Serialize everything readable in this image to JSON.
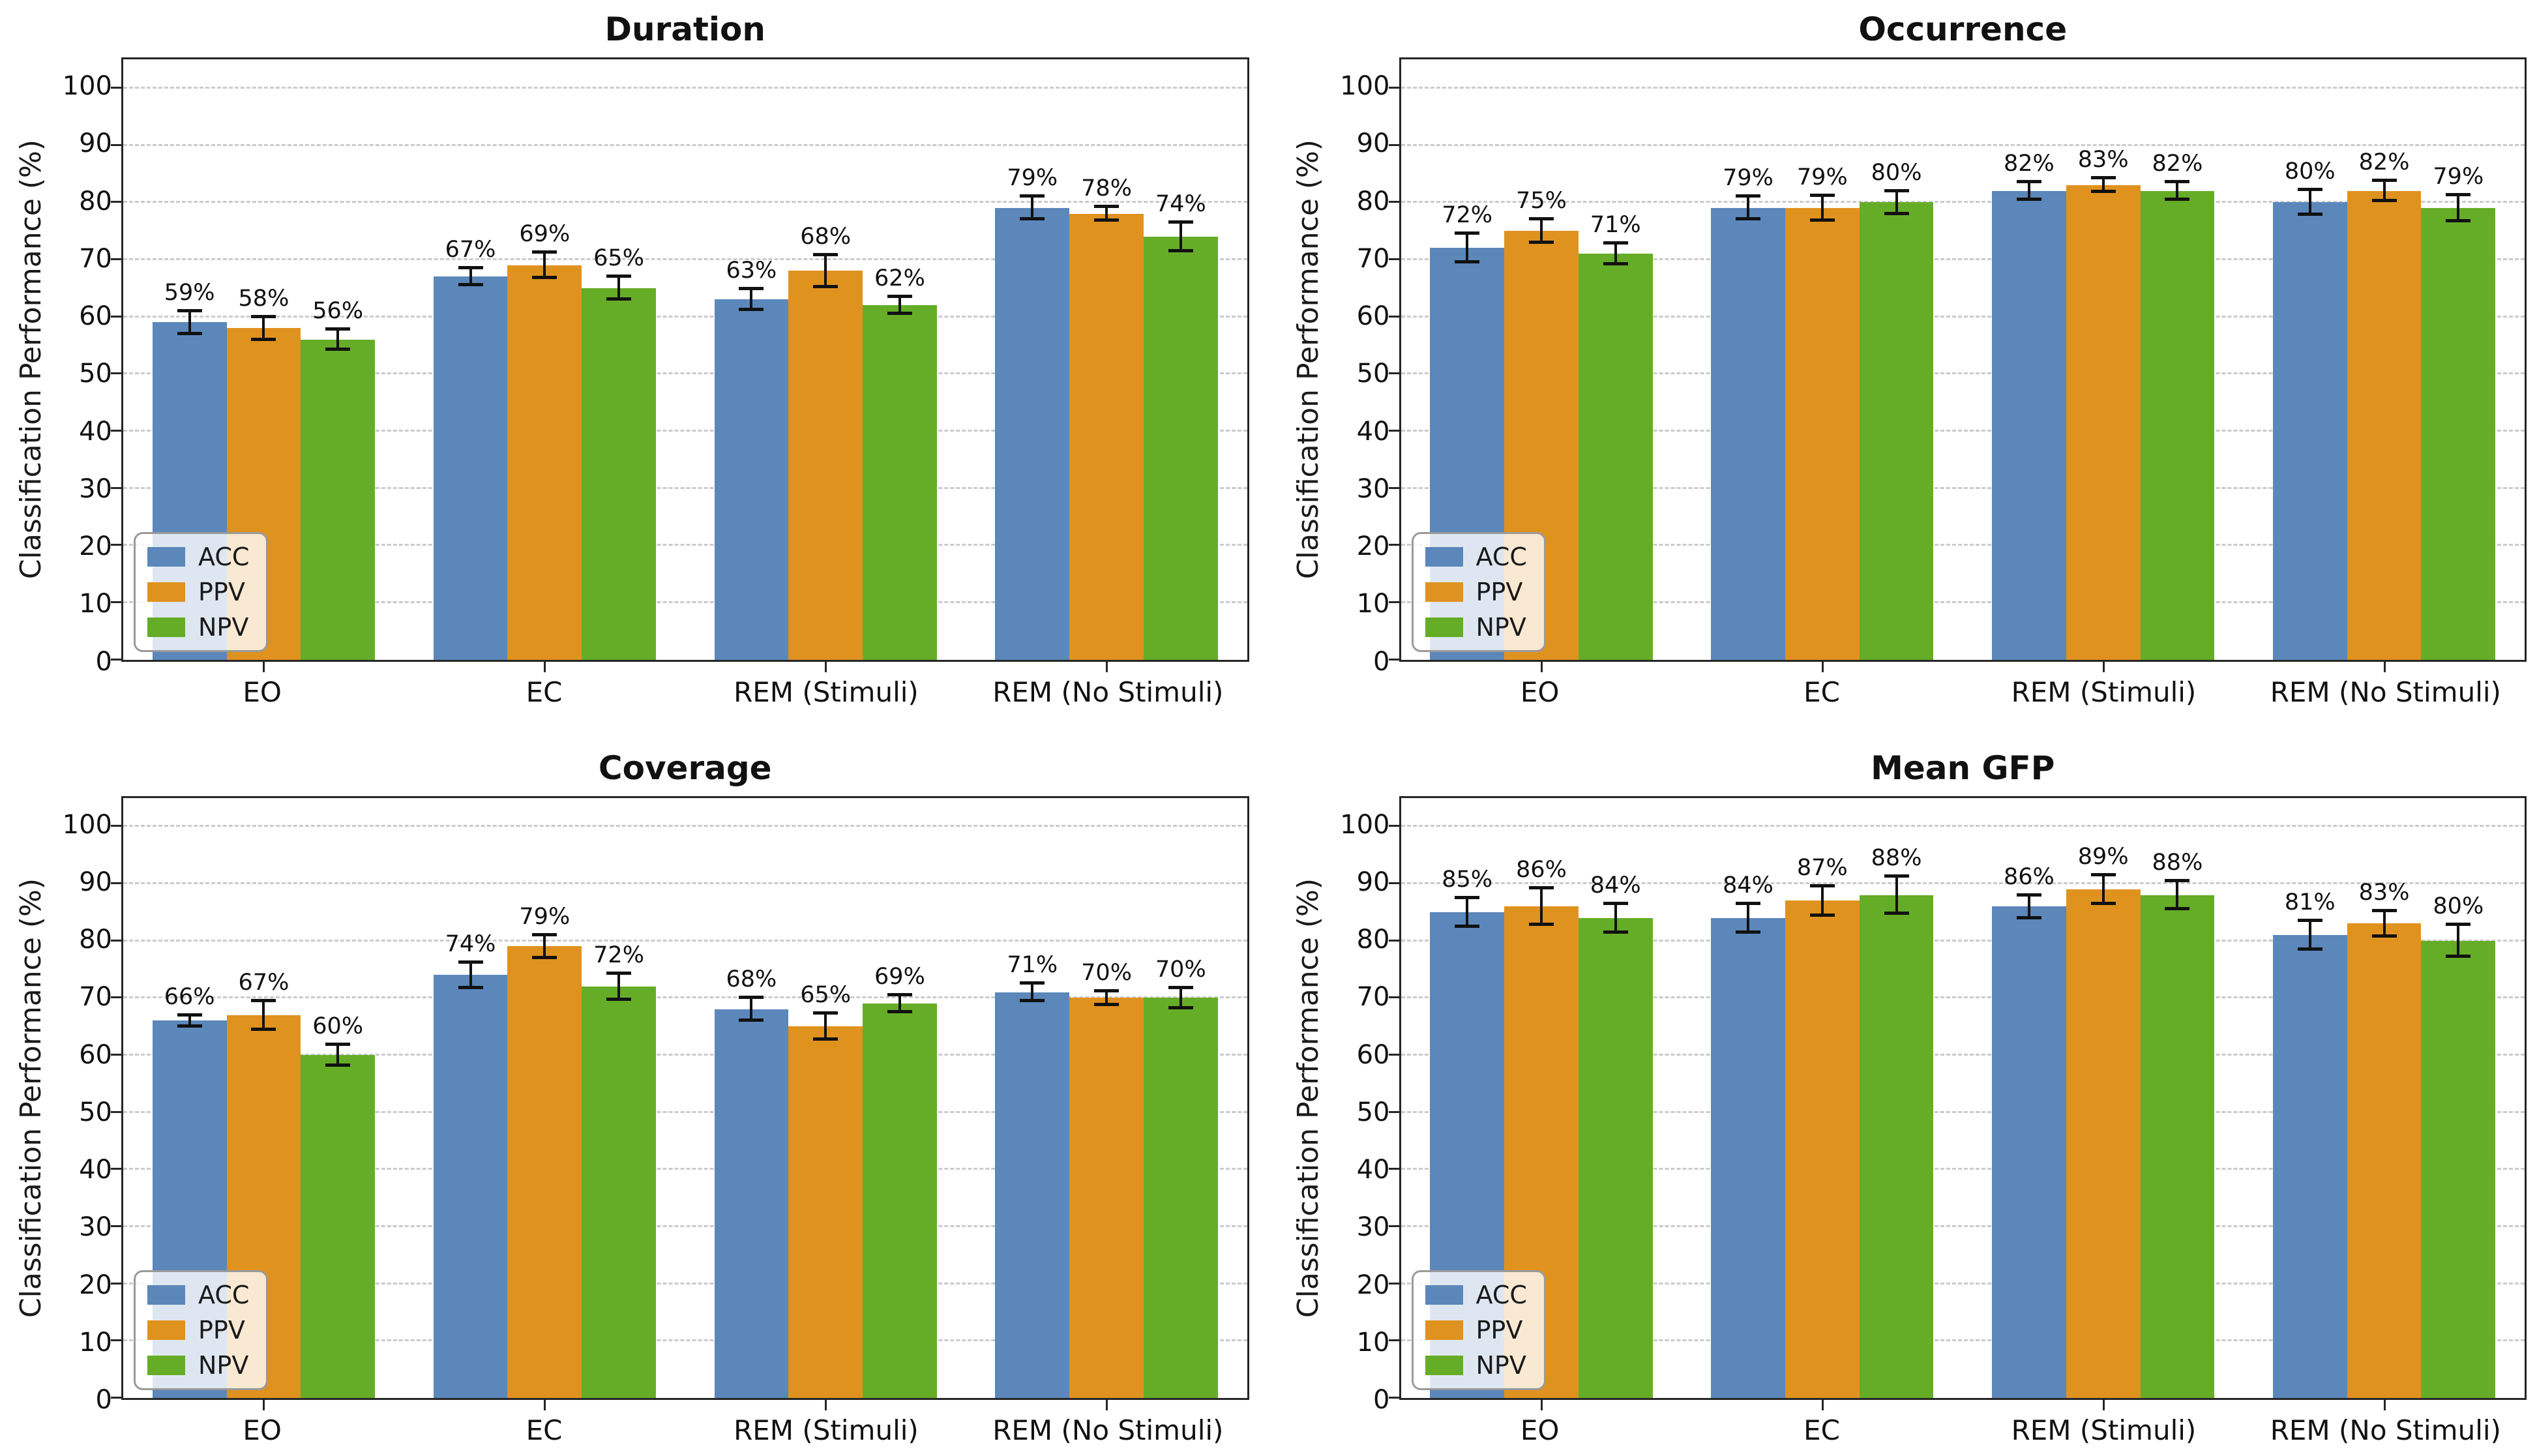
{
  "figure": {
    "ylabel": "Classification Performance (%)",
    "categories": [
      "EO",
      "EC",
      "REM (Stimuli)",
      "REM (No Stimuli)"
    ],
    "series_names": [
      "ACC",
      "PPV",
      "NPV"
    ],
    "colors": {
      "ACC": "#5b87bb",
      "PPV": "#e0921f",
      "NPV": "#65ad27"
    },
    "grid_color": "#cbcbcb",
    "spine_color": "#262626",
    "yticks": [
      0,
      10,
      20,
      30,
      40,
      50,
      60,
      70,
      80,
      90,
      100
    ],
    "ymax": 105,
    "legend_position": "lower left"
  },
  "chart_data": [
    {
      "type": "bar",
      "title": "Duration",
      "xlabel": "",
      "ylabel": "Classification Performance (%)",
      "ylim": [
        0,
        105
      ],
      "grid": true,
      "categories": [
        "EO",
        "EC",
        "REM (Stimuli)",
        "REM (No Stimuli)"
      ],
      "series": [
        {
          "name": "ACC",
          "color": "#5b87bb",
          "values": [
            59,
            67,
            63,
            79
          ],
          "errors": [
            2.0,
            1.5,
            1.8,
            2.0
          ]
        },
        {
          "name": "PPV",
          "color": "#e0921f",
          "values": [
            58,
            69,
            68,
            78
          ],
          "errors": [
            2.0,
            2.2,
            2.8,
            1.2
          ]
        },
        {
          "name": "NPV",
          "color": "#65ad27",
          "values": [
            56,
            65,
            62,
            74
          ],
          "errors": [
            1.8,
            2.0,
            1.5,
            2.5
          ]
        }
      ],
      "bar_labels": [
        [
          "59%",
          "67%",
          "63%",
          "79%"
        ],
        [
          "58%",
          "69%",
          "68%",
          "78%"
        ],
        [
          "56%",
          "65%",
          "62%",
          "74%"
        ]
      ]
    },
    {
      "type": "bar",
      "title": "Occurrence",
      "xlabel": "",
      "ylabel": "Classification Performance (%)",
      "ylim": [
        0,
        105
      ],
      "grid": true,
      "categories": [
        "EO",
        "EC",
        "REM (Stimuli)",
        "REM (No Stimuli)"
      ],
      "series": [
        {
          "name": "ACC",
          "color": "#5b87bb",
          "values": [
            72,
            79,
            82,
            80
          ],
          "errors": [
            2.5,
            2.0,
            1.5,
            2.2
          ]
        },
        {
          "name": "PPV",
          "color": "#e0921f",
          "values": [
            75,
            79,
            83,
            82
          ],
          "errors": [
            2.0,
            2.2,
            1.2,
            1.8
          ]
        },
        {
          "name": "NPV",
          "color": "#65ad27",
          "values": [
            71,
            80,
            82,
            79
          ],
          "errors": [
            1.8,
            2.0,
            1.5,
            2.3
          ]
        }
      ],
      "bar_labels": [
        [
          "72%",
          "79%",
          "82%",
          "80%"
        ],
        [
          "75%",
          "79%",
          "83%",
          "82%"
        ],
        [
          "71%",
          "80%",
          "82%",
          "79%"
        ]
      ]
    },
    {
      "type": "bar",
      "title": "Coverage",
      "xlabel": "",
      "ylabel": "Classification Performance (%)",
      "ylim": [
        0,
        105
      ],
      "grid": true,
      "categories": [
        "EO",
        "EC",
        "REM (Stimuli)",
        "REM (No Stimuli)"
      ],
      "series": [
        {
          "name": "ACC",
          "color": "#5b87bb",
          "values": [
            66,
            74,
            68,
            71
          ],
          "errors": [
            1.0,
            2.2,
            2.0,
            1.5
          ]
        },
        {
          "name": "PPV",
          "color": "#e0921f",
          "values": [
            67,
            79,
            65,
            70
          ],
          "errors": [
            2.5,
            2.0,
            2.3,
            1.2
          ]
        },
        {
          "name": "NPV",
          "color": "#65ad27",
          "values": [
            60,
            72,
            69,
            70
          ],
          "errors": [
            1.8,
            2.3,
            1.5,
            1.8
          ]
        }
      ],
      "bar_labels": [
        [
          "66%",
          "74%",
          "68%",
          "71%"
        ],
        [
          "67%",
          "79%",
          "65%",
          "70%"
        ],
        [
          "60%",
          "72%",
          "69%",
          "70%"
        ]
      ]
    },
    {
      "type": "bar",
      "title": "Mean GFP",
      "xlabel": "",
      "ylabel": "Classification Performance (%)",
      "ylim": [
        0,
        105
      ],
      "grid": true,
      "categories": [
        "EO",
        "EC",
        "REM (Stimuli)",
        "REM (No Stimuli)"
      ],
      "series": [
        {
          "name": "ACC",
          "color": "#5b87bb",
          "values": [
            85,
            84,
            86,
            81
          ],
          "errors": [
            2.5,
            2.5,
            2.0,
            2.5
          ]
        },
        {
          "name": "PPV",
          "color": "#e0921f",
          "values": [
            86,
            87,
            89,
            83
          ],
          "errors": [
            3.2,
            2.6,
            2.5,
            2.2
          ]
        },
        {
          "name": "NPV",
          "color": "#65ad27",
          "values": [
            84,
            88,
            88,
            80
          ],
          "errors": [
            2.5,
            3.2,
            2.5,
            2.8
          ]
        }
      ],
      "bar_labels": [
        [
          "85%",
          "84%",
          "86%",
          "81%"
        ],
        [
          "86%",
          "87%",
          "89%",
          "83%"
        ],
        [
          "84%",
          "88%",
          "88%",
          "80%"
        ]
      ]
    }
  ]
}
